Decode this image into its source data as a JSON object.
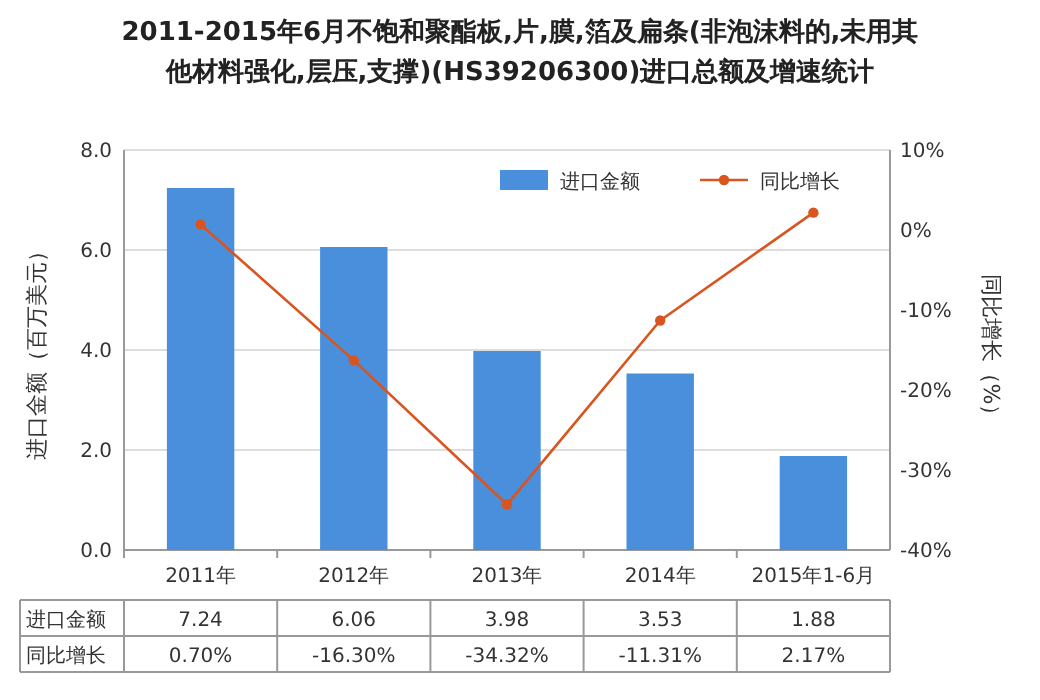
{
  "chart_data": {
    "type": "bar",
    "title": "2011-2015年6月不饱和聚酯板,片,膜,箔及扁条(非泡沫料的,未用其他材料强化,层压,支撑)(HS39206300)进口总额及增速统计",
    "ylabel": "进口金额（百万美元）",
    "y2label": "同比增长（%）",
    "categories": [
      "2011年",
      "2012年",
      "2013年",
      "2014年",
      "2015年1-6月"
    ],
    "series": [
      {
        "name": "进口金额",
        "color": "#4a8fdc",
        "values": [
          7.24,
          6.06,
          3.98,
          3.53,
          1.88
        ],
        "value_labels": [
          "7.24",
          "6.06",
          "3.98",
          "3.53",
          "1.88"
        ]
      },
      {
        "name": "同比增长",
        "type": "line",
        "axis": "y2",
        "color": "#d9541e",
        "marker": "circle",
        "values": [
          0.7,
          -16.3,
          -34.32,
          -11.31,
          2.17
        ],
        "value_labels": [
          "0.70%",
          "-16.30%",
          "-34.32%",
          "-11.31%",
          "2.17%"
        ]
      }
    ],
    "ylim": [
      0,
      8
    ],
    "yticks": [
      {
        "value": 0,
        "label": "0.0"
      },
      {
        "value": 2,
        "label": "2.0"
      },
      {
        "value": 4,
        "label": "4.0"
      },
      {
        "value": 6,
        "label": "6.0"
      },
      {
        "value": 8,
        "label": "8.0"
      }
    ],
    "y2lim": [
      -40,
      10
    ],
    "y2ticks": [
      {
        "value": -40,
        "label": "-40%"
      },
      {
        "value": -30,
        "label": "-30%"
      },
      {
        "value": -20,
        "label": "-20%"
      },
      {
        "value": -10,
        "label": "-10%"
      },
      {
        "value": 0,
        "label": "0%"
      },
      {
        "value": 10,
        "label": "10%"
      }
    ],
    "grid": "y",
    "legend": "top right"
  }
}
